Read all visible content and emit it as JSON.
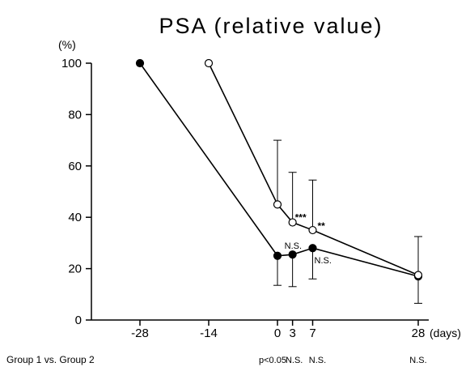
{
  "chart_data": {
    "type": "line",
    "title": "PSA (relative value)",
    "ylabel": "(%)",
    "xlabel": "(days)",
    "ylim": [
      0,
      100
    ],
    "yticks": [
      0,
      20,
      40,
      60,
      80,
      100
    ],
    "xticks": [
      -28,
      -14,
      0,
      3,
      7,
      28
    ],
    "grid": false,
    "series": [
      {
        "marker": "filled",
        "color": "#000000",
        "points": [
          {
            "x": -28,
            "y": 100,
            "err_up": 0,
            "err_down": 0
          },
          {
            "x": 0,
            "y": 25,
            "err_up": 0,
            "err_down": 11.5
          },
          {
            "x": 3,
            "y": 25.5,
            "err_up": 0,
            "err_down": 12.5
          },
          {
            "x": 7,
            "y": 28,
            "err_up": 0,
            "err_down": 12
          },
          {
            "x": 28,
            "y": 17,
            "err_up": 0,
            "err_down": 10.5
          }
        ]
      },
      {
        "marker": "open",
        "color": "#000000",
        "points": [
          {
            "x": -14,
            "y": 100,
            "err_up": 0,
            "err_down": 0
          },
          {
            "x": 0,
            "y": 45,
            "err_up": 25,
            "err_down": 0
          },
          {
            "x": 3,
            "y": 38,
            "err_up": 19.5,
            "err_down": 0
          },
          {
            "x": 7,
            "y": 35,
            "err_up": 19.5,
            "err_down": 0
          },
          {
            "x": 28,
            "y": 17.5,
            "err_up": 15,
            "err_down": 0
          }
        ]
      }
    ],
    "annotations": [
      {
        "text": "***",
        "x": 3,
        "y": 38
      },
      {
        "text": "**",
        "x": 7,
        "y": 35
      },
      {
        "text": "N.S.",
        "x": 3,
        "y": 25.5
      },
      {
        "text": "N.S.",
        "x": 7,
        "y": 28
      }
    ],
    "comparison": {
      "label": "Group 1 vs. Group 2",
      "entries": [
        {
          "x": 0,
          "text": "p<0.05"
        },
        {
          "x": 3,
          "text": "N.S."
        },
        {
          "x": 7,
          "text": "N.S."
        },
        {
          "x": 28,
          "text": "N.S."
        }
      ]
    }
  }
}
